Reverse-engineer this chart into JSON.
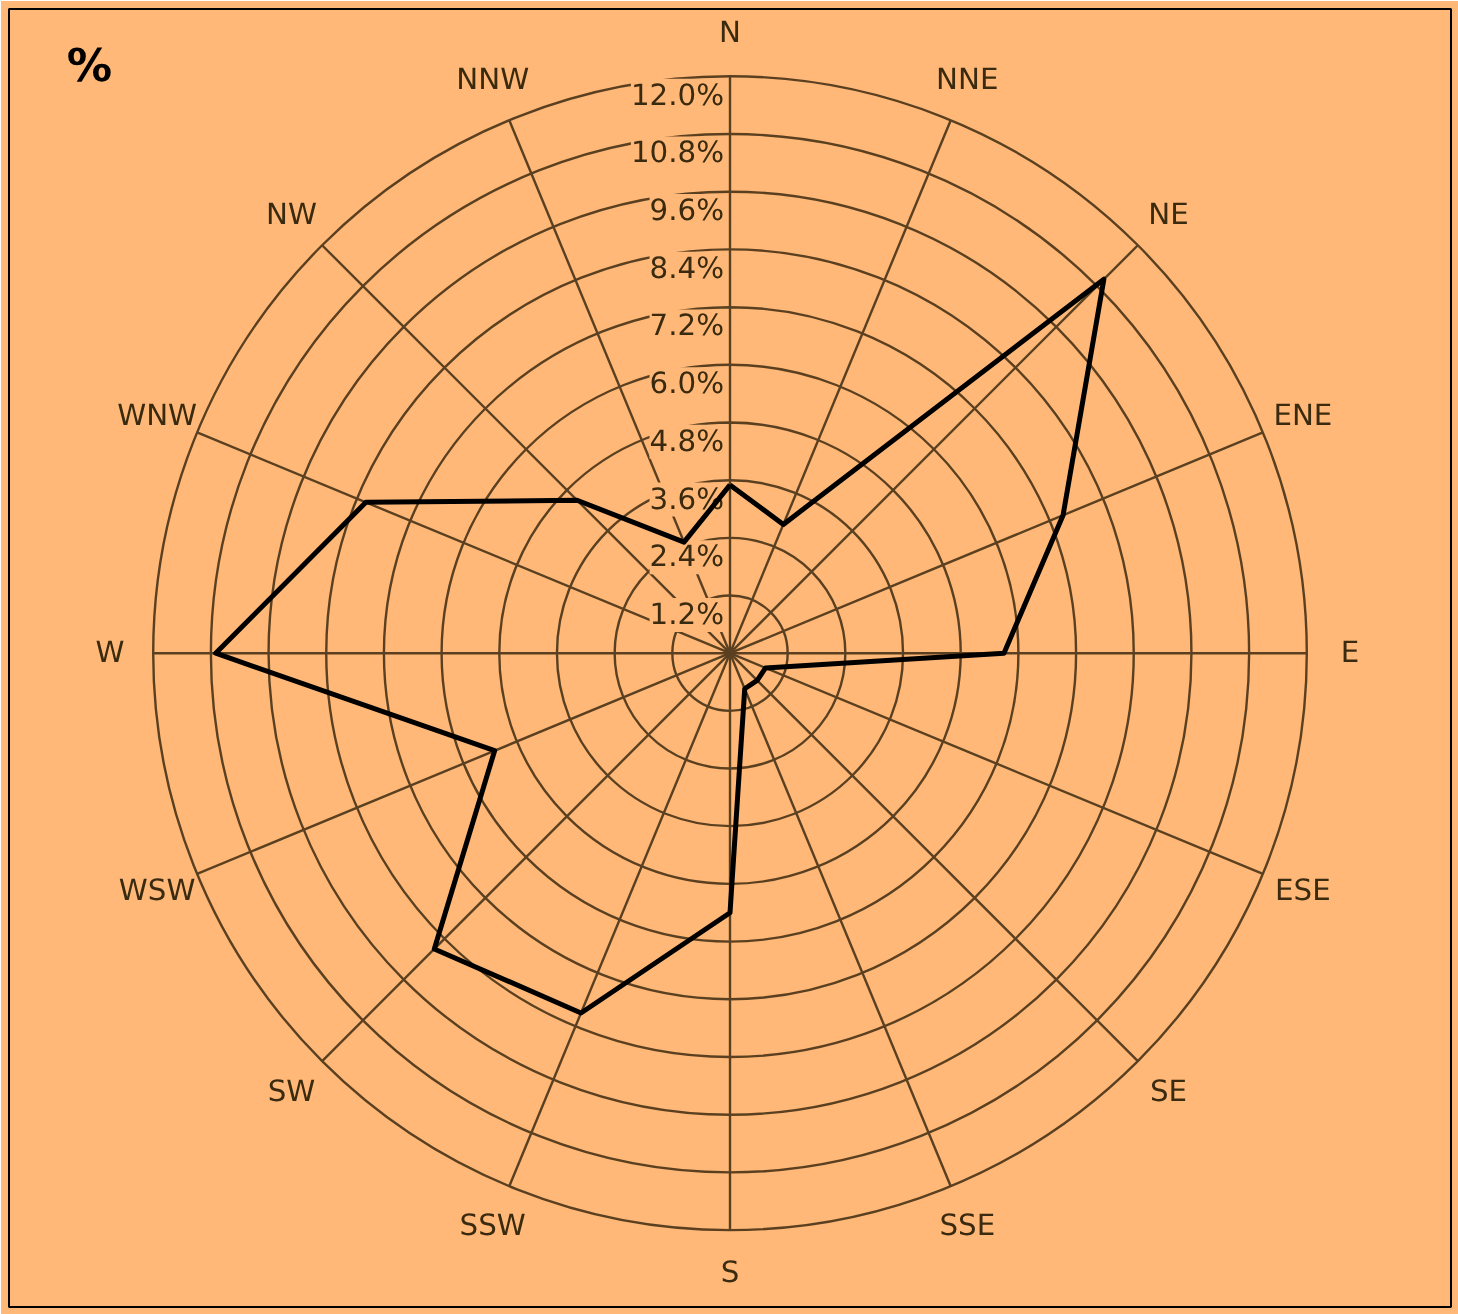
{
  "chart_data": {
    "type": "radar",
    "title": "%",
    "categories": [
      "N",
      "NNE",
      "NE",
      "ENE",
      "E",
      "ESE",
      "SE",
      "SSE",
      "S",
      "SSW",
      "SW",
      "WSW",
      "W",
      "WNW",
      "NW",
      "NNW"
    ],
    "series": [
      {
        "color": "#000000",
        "values": [
          3.5,
          2.9,
          11.0,
          7.5,
          5.7,
          0.8,
          0.8,
          0.8,
          5.4,
          8.1,
          8.7,
          5.3,
          10.7,
          8.2,
          4.5,
          2.5
        ]
      }
    ],
    "ylim": [
      0,
      12
    ],
    "yticks": [
      {
        "value": 1.2,
        "label": "1.2%"
      },
      {
        "value": 2.4,
        "label": "2.4%"
      },
      {
        "value": 3.6,
        "label": "3.6%"
      },
      {
        "value": 4.8,
        "label": "4.8%"
      },
      {
        "value": 6.0,
        "label": "6.0%"
      },
      {
        "value": 7.2,
        "label": "7.2%"
      },
      {
        "value": 8.4,
        "label": "8.4%"
      },
      {
        "value": 9.6,
        "label": "9.6%"
      },
      {
        "value": 10.8,
        "label": "10.8%"
      },
      {
        "value": 12.0,
        "label": "12.0%"
      }
    ],
    "grid": true,
    "marker": "none",
    "line_style": "solid"
  }
}
